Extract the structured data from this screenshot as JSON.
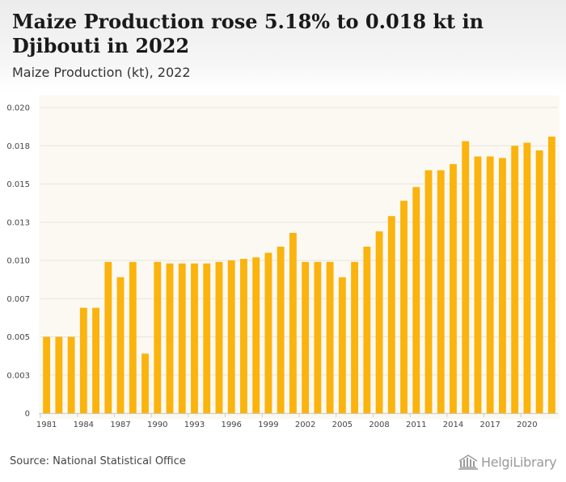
{
  "header": {
    "title": "Maize Production rose 5.18% to 0.018 kt in Djibouti in 2022",
    "subtitle": "Maize Production (kt), 2022"
  },
  "footer": {
    "source": "Source: National Statistical Office",
    "brand": "HelgiLibrary"
  },
  "colors": {
    "bar": "#fbb30d",
    "plot_background": "#fbf9f2",
    "grid": "#e6e4dc"
  },
  "chart_data": {
    "type": "bar",
    "title": "Maize Production rose 5.18% to 0.018 kt in Djibouti in 2022",
    "subtitle": "Maize Production (kt), 2022",
    "xlabel": "",
    "ylabel": "",
    "ylim": [
      0,
      0.02
    ],
    "grid": true,
    "yticks": [
      0,
      0.0025,
      0.005,
      0.0075,
      0.01,
      0.0125,
      0.015,
      0.0175,
      0.02
    ],
    "ytick_labels": [
      "0",
      "0.003",
      "0.005",
      "0.007",
      "0.010",
      "0.013",
      "0.015",
      "0.018",
      "0.020"
    ],
    "xtick_labels": [
      "1981",
      "1984",
      "1987",
      "1990",
      "1993",
      "1996",
      "1999",
      "2002",
      "2005",
      "2008",
      "2011",
      "2014",
      "2017",
      "2020"
    ],
    "categories": [
      "1981",
      "1982",
      "1983",
      "1984",
      "1985",
      "1986",
      "1987",
      "1988",
      "1989",
      "1990",
      "1991",
      "1992",
      "1993",
      "1994",
      "1995",
      "1996",
      "1997",
      "1998",
      "1999",
      "2000",
      "2001",
      "2002",
      "2003",
      "2004",
      "2005",
      "2006",
      "2007",
      "2008",
      "2009",
      "2010",
      "2011",
      "2012",
      "2013",
      "2014",
      "2015",
      "2016",
      "2017",
      "2018",
      "2019",
      "2020",
      "2021",
      "2022"
    ],
    "values": [
      0.005,
      0.005,
      0.005,
      0.0069,
      0.0069,
      0.0099,
      0.0089,
      0.0099,
      0.0039,
      0.0099,
      0.0098,
      0.0098,
      0.0098,
      0.0098,
      0.0099,
      0.01,
      0.0101,
      0.0102,
      0.0105,
      0.0109,
      0.0118,
      0.0099,
      0.0099,
      0.0099,
      0.0089,
      0.0099,
      0.0109,
      0.0119,
      0.0129,
      0.0139,
      0.0148,
      0.0159,
      0.0159,
      0.0163,
      0.0178,
      0.0168,
      0.0168,
      0.0167,
      0.0175,
      0.0177,
      0.0172,
      0.0181
    ]
  }
}
